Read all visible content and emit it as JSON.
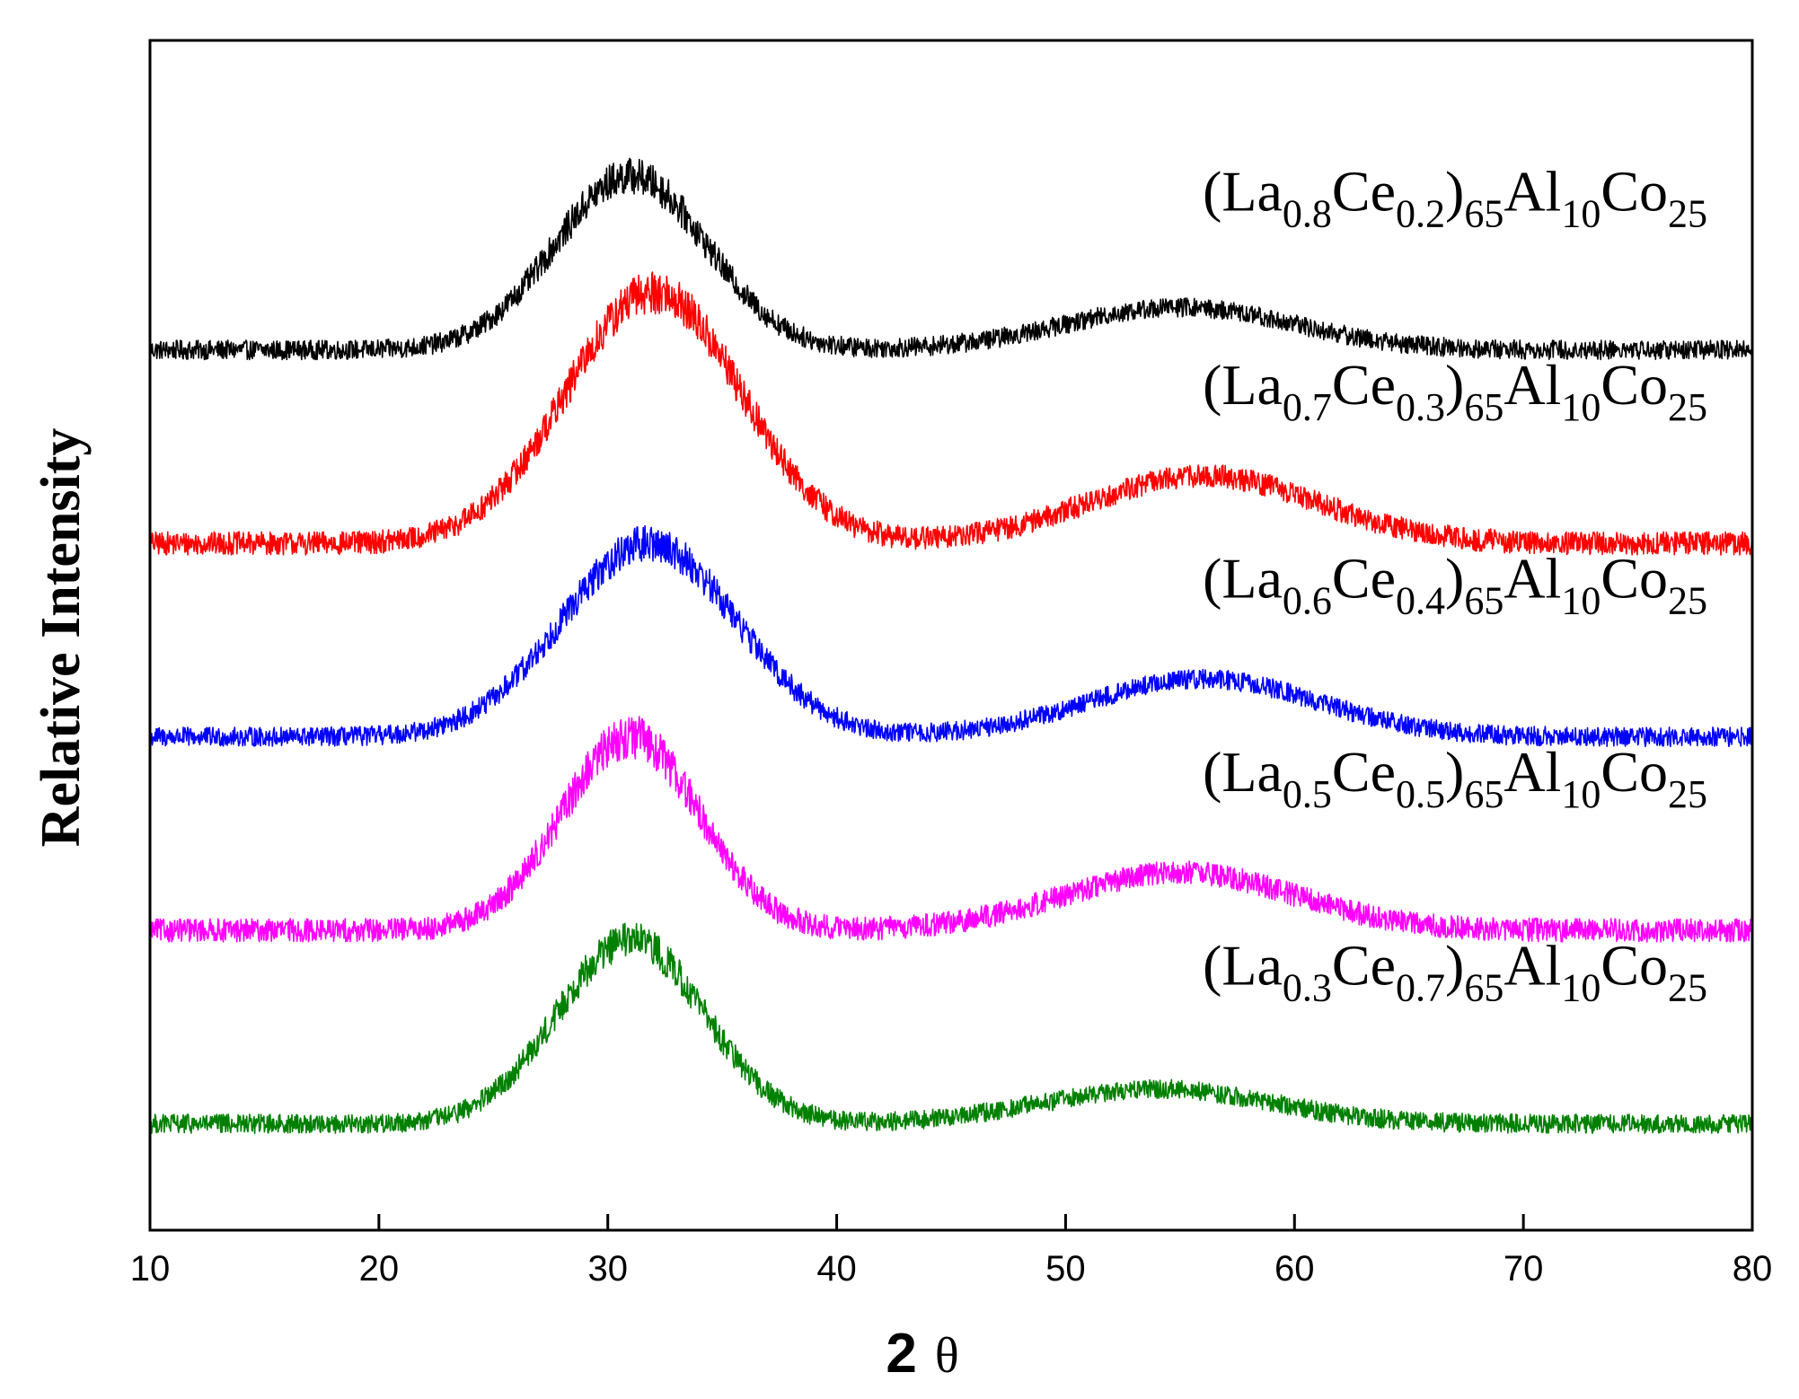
{
  "chart_data": {
    "type": "line",
    "title": "",
    "xlabel_main": "2",
    "xlabel_symbol": "θ",
    "ylabel": "Relative Intensity",
    "xlim": [
      10,
      80
    ],
    "x_ticks": [
      "10",
      "20",
      "30",
      "40",
      "50",
      "60",
      "70",
      "80"
    ],
    "y_ticks": [],
    "grid": false,
    "legend": "labels placed above each curve (right side)",
    "series": [
      {
        "id": "la08",
        "color": "#000000",
        "label_parts": [
          {
            "t": "(La",
            "sub": false
          },
          {
            "t": "0.8",
            "sub": true
          },
          {
            "t": "Ce",
            "sub": false
          },
          {
            "t": "0.2",
            "sub": true
          },
          {
            "t": ")",
            "sub": false
          },
          {
            "t": "65",
            "sub": true
          },
          {
            "t": "Al",
            "sub": false
          },
          {
            "t": "10",
            "sub": true
          },
          {
            "t": "Co",
            "sub": false
          },
          {
            "t": "25",
            "sub": true
          }
        ],
        "baseline": 4.0,
        "peak1_center": 31.0,
        "peak1_height": 0.9,
        "peak1_width": 3.3,
        "peak2_center": 55.0,
        "peak2_height": 0.22,
        "peak2_width": 5.0,
        "noise": 0.05
      },
      {
        "id": "la07",
        "color": "#ff0000",
        "label_parts": [
          {
            "t": "(La",
            "sub": false
          },
          {
            "t": "0.7",
            "sub": true
          },
          {
            "t": "Ce",
            "sub": false
          },
          {
            "t": "0.3",
            "sub": true
          },
          {
            "t": ")",
            "sub": false
          },
          {
            "t": "65",
            "sub": true
          },
          {
            "t": "Al",
            "sub": false
          },
          {
            "t": "10",
            "sub": true
          },
          {
            "t": "Co",
            "sub": false
          },
          {
            "t": "25",
            "sub": true
          }
        ],
        "baseline": 3.0,
        "peak1_center": 32.0,
        "peak1_height": 1.3,
        "peak1_width": 3.8,
        "peak2_center": 56.0,
        "peak2_height": 0.35,
        "peak2_width": 5.0,
        "noise": 0.06
      },
      {
        "id": "la06",
        "color": "#0000ff",
        "label_parts": [
          {
            "t": "(La",
            "sub": false
          },
          {
            "t": "0.6",
            "sub": true
          },
          {
            "t": "Ce",
            "sub": false
          },
          {
            "t": "0.4",
            "sub": true
          },
          {
            "t": ")",
            "sub": false
          },
          {
            "t": "65",
            "sub": true
          },
          {
            "t": "Al",
            "sub": false
          },
          {
            "t": "10",
            "sub": true
          },
          {
            "t": "Co",
            "sub": false
          },
          {
            "t": "25",
            "sub": true
          }
        ],
        "baseline": 2.0,
        "peak1_center": 31.8,
        "peak1_height": 1.0,
        "peak1_width": 3.8,
        "peak2_center": 56.0,
        "peak2_height": 0.3,
        "peak2_width": 5.0,
        "noise": 0.05
      },
      {
        "id": "la05",
        "color": "#ff00ff",
        "label_parts": [
          {
            "t": "(La",
            "sub": false
          },
          {
            "t": "0.5",
            "sub": true
          },
          {
            "t": "Ce",
            "sub": false
          },
          {
            "t": "0.5",
            "sub": true
          },
          {
            "t": ")",
            "sub": false
          },
          {
            "t": "65",
            "sub": true
          },
          {
            "t": "Al",
            "sub": false
          },
          {
            "t": "10",
            "sub": true
          },
          {
            "t": "Co",
            "sub": false
          },
          {
            "t": "25",
            "sub": true
          }
        ],
        "baseline": 1.0,
        "peak1_center": 31.0,
        "peak1_height": 1.0,
        "peak1_width": 3.0,
        "peak2_center": 55.0,
        "peak2_height": 0.3,
        "peak2_width": 5.0,
        "noise": 0.06
      },
      {
        "id": "la03",
        "color": "#008000",
        "label_parts": [
          {
            "t": "(La",
            "sub": false
          },
          {
            "t": "0.3",
            "sub": true
          },
          {
            "t": "Ce",
            "sub": false
          },
          {
            "t": "0.7",
            "sub": true
          },
          {
            "t": ")",
            "sub": false
          },
          {
            "t": "65",
            "sub": true
          },
          {
            "t": "Al",
            "sub": false
          },
          {
            "t": "10",
            "sub": true
          },
          {
            "t": "Co",
            "sub": false
          },
          {
            "t": "25",
            "sub": true
          }
        ],
        "baseline": 0.0,
        "peak1_center": 31.0,
        "peak1_height": 0.95,
        "peak1_width": 3.2,
        "peak2_center": 54.0,
        "peak2_height": 0.18,
        "peak2_width": 5.0,
        "noise": 0.05
      }
    ]
  }
}
